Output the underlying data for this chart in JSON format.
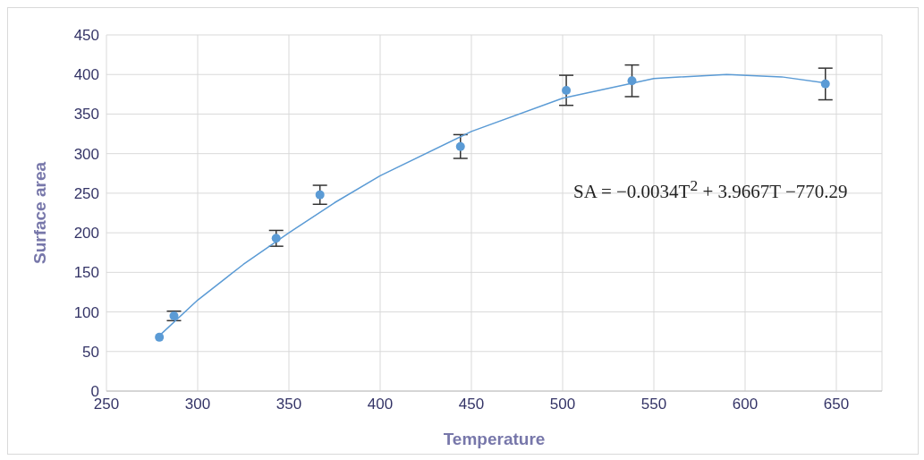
{
  "chart_data": {
    "type": "scatter",
    "xlabel": "Temperature",
    "ylabel": "Surface area",
    "xlim": [
      250,
      675
    ],
    "xticks": [
      250,
      300,
      350,
      400,
      450,
      500,
      550,
      600,
      650
    ],
    "ylim": [
      0,
      450
    ],
    "yticks": [
      0,
      50,
      100,
      150,
      200,
      250,
      300,
      350,
      400,
      450
    ],
    "grid": true,
    "legend": false,
    "marker": "circle",
    "series": [
      {
        "color": "#5b9bd5",
        "x": [
          279,
          287,
          343,
          367,
          444,
          502,
          538,
          644
        ],
        "values": [
          68,
          95,
          193,
          248,
          309,
          380,
          392,
          388
        ],
        "errors": [
          null,
          6,
          10,
          12,
          15,
          19,
          20,
          20
        ]
      },
      {
        "type": "line",
        "color": "#5b9bd5",
        "marker": "none",
        "x": [
          279,
          300,
          325,
          350,
          375,
          400,
          450,
          500,
          550,
          590,
          620,
          645
        ],
        "values": [
          70,
          115,
          160,
          200,
          238,
          272,
          328,
          370,
          395,
          400,
          397,
          389
        ]
      }
    ],
    "annotations": [
      "SA = −0.0034T$^{2}$ + 3.9667T −770.29"
    ]
  }
}
